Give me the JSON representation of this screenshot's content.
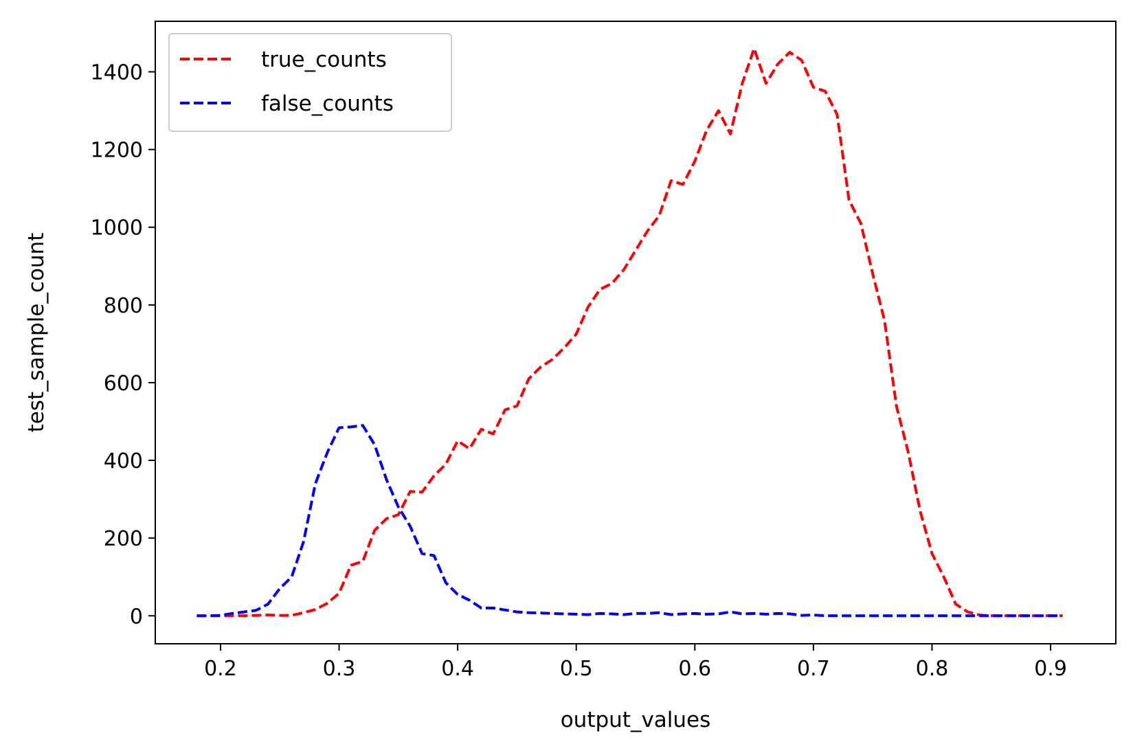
{
  "chart_data": {
    "type": "line",
    "xlabel": "output_values",
    "ylabel": "test_sample_count",
    "xlim": [
      0.145,
      0.955
    ],
    "ylim": [
      -72,
      1530
    ],
    "xticks": [
      0.2,
      0.3,
      0.4,
      0.5,
      0.6,
      0.7,
      0.8,
      0.9
    ],
    "xtick_labels": [
      "0.2",
      "0.3",
      "0.4",
      "0.5",
      "0.6",
      "0.7",
      "0.8",
      "0.9"
    ],
    "yticks": [
      0,
      200,
      400,
      600,
      800,
      1000,
      1200,
      1400
    ],
    "ytick_labels": [
      "0",
      "200",
      "400",
      "600",
      "800",
      "1000",
      "1200",
      "1400"
    ],
    "legend_position": "top-left",
    "grid": false,
    "x": [
      0.18,
      0.19,
      0.2,
      0.21,
      0.22,
      0.23,
      0.24,
      0.25,
      0.26,
      0.27,
      0.28,
      0.29,
      0.3,
      0.31,
      0.32,
      0.33,
      0.34,
      0.35,
      0.36,
      0.37,
      0.38,
      0.39,
      0.4,
      0.41,
      0.42,
      0.43,
      0.44,
      0.45,
      0.46,
      0.47,
      0.48,
      0.49,
      0.5,
      0.51,
      0.52,
      0.53,
      0.54,
      0.55,
      0.56,
      0.57,
      0.58,
      0.59,
      0.6,
      0.61,
      0.62,
      0.63,
      0.64,
      0.65,
      0.66,
      0.67,
      0.68,
      0.69,
      0.7,
      0.71,
      0.72,
      0.73,
      0.74,
      0.75,
      0.76,
      0.77,
      0.78,
      0.79,
      0.8,
      0.81,
      0.82,
      0.83,
      0.84,
      0.85,
      0.86,
      0.87,
      0.88,
      0.89,
      0.9,
      0.91
    ],
    "series": [
      {
        "name": "true_counts",
        "color": "#ff0000",
        "values": [
          0,
          0,
          0,
          0,
          0,
          1,
          2,
          1,
          1,
          8,
          16,
          32,
          58,
          130,
          140,
          220,
          250,
          260,
          320,
          318,
          360,
          390,
          450,
          430,
          480,
          468,
          530,
          540,
          610,
          640,
          660,
          690,
          725,
          795,
          840,
          855,
          890,
          940,
          990,
          1030,
          1120,
          1110,
          1170,
          1250,
          1300,
          1240,
          1370,
          1460,
          1370,
          1420,
          1450,
          1430,
          1360,
          1350,
          1290,
          1070,
          1010,
          880,
          760,
          540,
          420,
          270,
          160,
          100,
          30,
          10,
          2,
          0,
          0,
          0,
          0,
          0,
          0,
          0
        ]
      },
      {
        "name": "false_counts",
        "color": "#0000ff",
        "values": [
          0,
          0,
          1,
          6,
          10,
          14,
          30,
          70,
          100,
          190,
          340,
          420,
          484,
          486,
          490,
          440,
          350,
          280,
          230,
          160,
          155,
          85,
          55,
          40,
          20,
          20,
          15,
          10,
          8,
          7,
          6,
          5,
          4,
          3,
          6,
          5,
          3,
          6,
          6,
          8,
          3,
          5,
          6,
          4,
          5,
          10,
          5,
          6,
          4,
          6,
          5,
          1,
          2,
          0,
          0,
          0,
          0,
          0,
          0,
          0,
          0,
          0,
          0,
          0,
          0,
          0,
          0,
          0,
          0,
          0,
          0,
          0,
          0,
          0
        ]
      }
    ]
  }
}
